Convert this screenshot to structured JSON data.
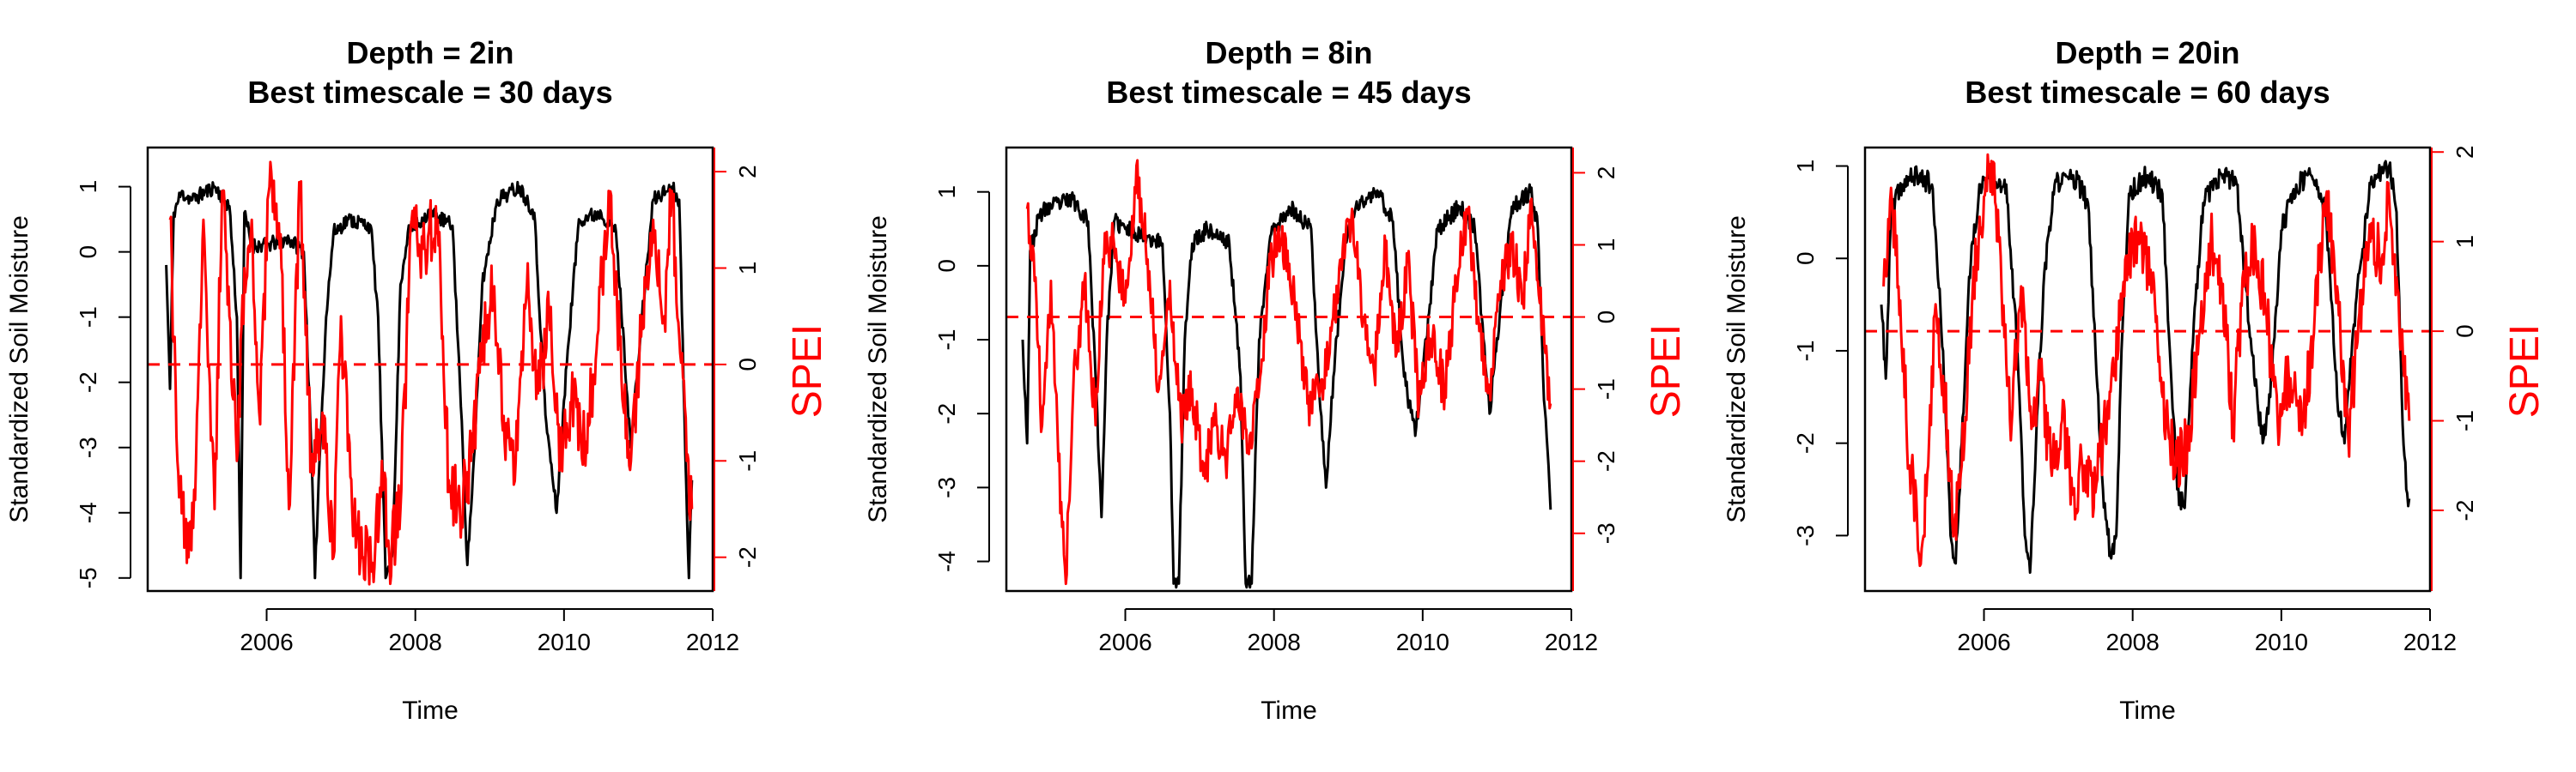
{
  "figure": {
    "background": "#ffffff",
    "colors": {
      "moisture": "#000000",
      "spei": "#ff0000",
      "zero_line": "#ff0000"
    }
  },
  "chart_data": [
    {
      "type": "line",
      "title_line1": "Depth = 2in",
      "title_line2": "Best timescale = 30 days",
      "xlabel": "Time",
      "ylabel": "Standardized Soil Moisture",
      "ylabel_right": "SPEI",
      "xlim": [
        2004.4,
        2012.0
      ],
      "xticks": [
        2006,
        2008,
        2010,
        2012
      ],
      "ylim_left": [
        -5.2,
        1.6
      ],
      "yticks_left": [
        1,
        0,
        -1,
        -2,
        -3,
        -4,
        -5
      ],
      "ylim_right": [
        -2.35,
        2.25
      ],
      "yticks_right": [
        2,
        1,
        0,
        -1,
        -2
      ],
      "zero_line_spei": 0,
      "seed": 11,
      "moisture_anchors": [
        [
          2004.65,
          -0.2
        ],
        [
          2004.7,
          -2.1
        ],
        [
          2004.75,
          0.6
        ],
        [
          2004.85,
          0.9
        ],
        [
          2005.0,
          0.8
        ],
        [
          2005.3,
          1.0
        ],
        [
          2005.5,
          0.7
        ],
        [
          2005.6,
          -1.0
        ],
        [
          2005.65,
          -5.0
        ],
        [
          2005.7,
          0.6
        ],
        [
          2005.8,
          0.1
        ],
        [
          2006.0,
          0.1
        ],
        [
          2006.3,
          0.2
        ],
        [
          2006.5,
          0.0
        ],
        [
          2006.6,
          -3.0
        ],
        [
          2006.65,
          -5.0
        ],
        [
          2006.7,
          -3.5
        ],
        [
          2006.8,
          -1.0
        ],
        [
          2006.9,
          0.3
        ],
        [
          2007.1,
          0.5
        ],
        [
          2007.4,
          0.4
        ],
        [
          2007.5,
          -1.0
        ],
        [
          2007.6,
          -5.0
        ],
        [
          2007.7,
          -4.5
        ],
        [
          2007.8,
          -0.5
        ],
        [
          2007.9,
          0.3
        ],
        [
          2008.2,
          0.6
        ],
        [
          2008.5,
          0.4
        ],
        [
          2008.6,
          -2.0
        ],
        [
          2008.7,
          -4.8
        ],
        [
          2008.8,
          -3.0
        ],
        [
          2008.9,
          -0.5
        ],
        [
          2009.1,
          0.8
        ],
        [
          2009.4,
          1.0
        ],
        [
          2009.6,
          0.6
        ],
        [
          2009.75,
          -2.5
        ],
        [
          2009.9,
          -4.0
        ],
        [
          2010.05,
          -1.5
        ],
        [
          2010.2,
          0.5
        ],
        [
          2010.5,
          0.6
        ],
        [
          2010.7,
          0.3
        ],
        [
          2010.9,
          -3.0
        ],
        [
          2011.05,
          -1.0
        ],
        [
          2011.2,
          0.8
        ],
        [
          2011.45,
          1.0
        ],
        [
          2011.55,
          0.8
        ],
        [
          2011.62,
          -2.5
        ],
        [
          2011.68,
          -5.0
        ],
        [
          2011.72,
          -3.5
        ]
      ],
      "spei_anchors": [
        [
          2004.7,
          1.5
        ],
        [
          2004.8,
          -1.0
        ],
        [
          2004.95,
          -2.0
        ],
        [
          2005.05,
          -1.0
        ],
        [
          2005.15,
          1.5
        ],
        [
          2005.3,
          -1.5
        ],
        [
          2005.4,
          1.8
        ],
        [
          2005.5,
          0.5
        ],
        [
          2005.6,
          -1.0
        ],
        [
          2005.7,
          1.0
        ],
        [
          2005.8,
          1.5
        ],
        [
          2005.9,
          -0.5
        ],
        [
          2006.05,
          2.1
        ],
        [
          2006.2,
          1.0
        ],
        [
          2006.3,
          -1.5
        ],
        [
          2006.45,
          1.8
        ],
        [
          2006.6,
          -1.0
        ],
        [
          2006.75,
          -0.5
        ],
        [
          2006.9,
          -2.0
        ],
        [
          2007.0,
          0.5
        ],
        [
          2007.15,
          -1.5
        ],
        [
          2007.3,
          -2.0
        ],
        [
          2007.45,
          -2.1
        ],
        [
          2007.55,
          -1.0
        ],
        [
          2007.65,
          -2.0
        ],
        [
          2007.8,
          -1.5
        ],
        [
          2007.95,
          1.5
        ],
        [
          2008.1,
          1.2
        ],
        [
          2008.3,
          1.5
        ],
        [
          2008.45,
          -1.2
        ],
        [
          2008.6,
          -1.5
        ],
        [
          2008.75,
          -1.0
        ],
        [
          2008.9,
          0.2
        ],
        [
          2009.05,
          0.8
        ],
        [
          2009.2,
          -0.8
        ],
        [
          2009.35,
          -1.0
        ],
        [
          2009.5,
          0.8
        ],
        [
          2009.65,
          -0.3
        ],
        [
          2009.8,
          0.5
        ],
        [
          2009.95,
          -1.0
        ],
        [
          2010.1,
          -0.4
        ],
        [
          2010.3,
          -0.8
        ],
        [
          2010.45,
          0.3
        ],
        [
          2010.6,
          1.8
        ],
        [
          2010.75,
          0.2
        ],
        [
          2010.9,
          -1.0
        ],
        [
          2011.05,
          0.5
        ],
        [
          2011.2,
          1.5
        ],
        [
          2011.35,
          0.5
        ],
        [
          2011.45,
          1.8
        ],
        [
          2011.55,
          0.3
        ],
        [
          2011.65,
          -1.0
        ],
        [
          2011.72,
          -1.5
        ]
      ]
    },
    {
      "type": "line",
      "title_line1": "Depth = 8in",
      "title_line2": "Best timescale = 45 days",
      "xlabel": "Time",
      "ylabel": "Standardized Soil Moisture",
      "ylabel_right": "SPEI",
      "xlim": [
        2004.4,
        2012.0
      ],
      "xticks": [
        2006,
        2008,
        2010,
        2012
      ],
      "ylim_left": [
        -4.4,
        1.6
      ],
      "yticks_left": [
        1,
        0,
        -1,
        -2,
        -3,
        -4
      ],
      "ylim_right": [
        -3.8,
        2.35
      ],
      "yticks_right": [
        2,
        1,
        0,
        -1,
        -2,
        -3
      ],
      "zero_line_spei": 0,
      "seed": 23,
      "moisture_anchors": [
        [
          2004.62,
          -1.0
        ],
        [
          2004.68,
          -2.4
        ],
        [
          2004.72,
          0.2
        ],
        [
          2004.85,
          0.7
        ],
        [
          2005.0,
          0.8
        ],
        [
          2005.3,
          0.9
        ],
        [
          2005.5,
          0.6
        ],
        [
          2005.6,
          -1.5
        ],
        [
          2005.68,
          -3.4
        ],
        [
          2005.75,
          -1.0
        ],
        [
          2005.85,
          0.6
        ],
        [
          2006.0,
          0.5
        ],
        [
          2006.3,
          0.4
        ],
        [
          2006.5,
          0.3
        ],
        [
          2006.6,
          -2.0
        ],
        [
          2006.65,
          -4.3
        ],
        [
          2006.72,
          -4.3
        ],
        [
          2006.8,
          -1.0
        ],
        [
          2006.9,
          0.3
        ],
        [
          2007.1,
          0.5
        ],
        [
          2007.4,
          0.3
        ],
        [
          2007.55,
          -1.5
        ],
        [
          2007.62,
          -4.3
        ],
        [
          2007.7,
          -4.3
        ],
        [
          2007.8,
          -1.0
        ],
        [
          2007.95,
          0.4
        ],
        [
          2008.2,
          0.8
        ],
        [
          2008.5,
          0.5
        ],
        [
          2008.6,
          -1.5
        ],
        [
          2008.7,
          -3.0
        ],
        [
          2008.8,
          -1.5
        ],
        [
          2008.95,
          0.2
        ],
        [
          2009.1,
          0.8
        ],
        [
          2009.4,
          1.0
        ],
        [
          2009.6,
          0.6
        ],
        [
          2009.75,
          -1.5
        ],
        [
          2009.9,
          -2.3
        ],
        [
          2010.05,
          -1.0
        ],
        [
          2010.2,
          0.5
        ],
        [
          2010.5,
          0.8
        ],
        [
          2010.7,
          0.5
        ],
        [
          2010.9,
          -2.0
        ],
        [
          2011.05,
          -0.5
        ],
        [
          2011.2,
          0.8
        ],
        [
          2011.45,
          1.0
        ],
        [
          2011.55,
          0.5
        ],
        [
          2011.62,
          -1.5
        ],
        [
          2011.68,
          -2.5
        ],
        [
          2011.72,
          -3.3
        ]
      ],
      "spei_anchors": [
        [
          2004.68,
          1.5
        ],
        [
          2004.78,
          0.5
        ],
        [
          2004.88,
          -1.5
        ],
        [
          2005.0,
          0.5
        ],
        [
          2005.1,
          -2.0
        ],
        [
          2005.2,
          -3.7
        ],
        [
          2005.3,
          -1.0
        ],
        [
          2005.45,
          0.5
        ],
        [
          2005.6,
          -1.5
        ],
        [
          2005.7,
          0.8
        ],
        [
          2005.85,
          1.0
        ],
        [
          2006.0,
          0.2
        ],
        [
          2006.15,
          2.1
        ],
        [
          2006.3,
          0.8
        ],
        [
          2006.45,
          -1.0
        ],
        [
          2006.6,
          0.5
        ],
        [
          2006.75,
          -1.5
        ],
        [
          2006.9,
          -1.0
        ],
        [
          2007.05,
          -2.2
        ],
        [
          2007.2,
          -1.5
        ],
        [
          2007.35,
          -2.0
        ],
        [
          2007.5,
          -1.0
        ],
        [
          2007.65,
          -1.8
        ],
        [
          2007.8,
          -1.0
        ],
        [
          2007.95,
          0.8
        ],
        [
          2008.1,
          1.0
        ],
        [
          2008.3,
          0.2
        ],
        [
          2008.45,
          -1.2
        ],
        [
          2008.6,
          -1.0
        ],
        [
          2008.75,
          -0.5
        ],
        [
          2008.9,
          0.8
        ],
        [
          2009.05,
          1.5
        ],
        [
          2009.2,
          0.0
        ],
        [
          2009.35,
          -0.8
        ],
        [
          2009.5,
          1.0
        ],
        [
          2009.65,
          -0.5
        ],
        [
          2009.8,
          0.8
        ],
        [
          2009.95,
          -1.2
        ],
        [
          2010.1,
          -0.3
        ],
        [
          2010.3,
          -1.0
        ],
        [
          2010.45,
          0.5
        ],
        [
          2010.6,
          1.5
        ],
        [
          2010.75,
          0.0
        ],
        [
          2010.9,
          -1.0
        ],
        [
          2011.05,
          0.5
        ],
        [
          2011.2,
          1.0
        ],
        [
          2011.35,
          0.2
        ],
        [
          2011.45,
          1.6
        ],
        [
          2011.55,
          0.5
        ],
        [
          2011.65,
          -0.5
        ],
        [
          2011.72,
          -1.2
        ]
      ]
    },
    {
      "type": "line",
      "title_line1": "Depth = 20in",
      "title_line2": "Best timescale = 60 days",
      "xlabel": "Time",
      "ylabel": "Standardized Soil Moisture",
      "ylabel_right": "SPEI",
      "xlim": [
        2004.4,
        2012.0
      ],
      "xticks": [
        2006,
        2008,
        2010,
        2012
      ],
      "ylim_left": [
        -3.6,
        1.2
      ],
      "yticks_left": [
        1,
        0,
        -1,
        -2,
        -3
      ],
      "ylim_right": [
        -2.9,
        2.05
      ],
      "yticks_right": [
        2,
        1,
        0,
        -1,
        -2
      ],
      "zero_line_spei": 0,
      "seed": 37,
      "moisture_anchors": [
        [
          2004.62,
          -0.5
        ],
        [
          2004.68,
          -1.3
        ],
        [
          2004.75,
          0.5
        ],
        [
          2004.9,
          0.8
        ],
        [
          2005.1,
          0.9
        ],
        [
          2005.3,
          0.8
        ],
        [
          2005.45,
          -1.0
        ],
        [
          2005.55,
          -3.0
        ],
        [
          2005.62,
          -3.3
        ],
        [
          2005.7,
          -2.0
        ],
        [
          2005.8,
          -0.2
        ],
        [
          2005.95,
          0.8
        ],
        [
          2006.1,
          0.9
        ],
        [
          2006.3,
          0.8
        ],
        [
          2006.45,
          -1.0
        ],
        [
          2006.55,
          -3.0
        ],
        [
          2006.62,
          -3.4
        ],
        [
          2006.7,
          -2.0
        ],
        [
          2006.8,
          -0.3
        ],
        [
          2006.95,
          0.8
        ],
        [
          2007.2,
          0.9
        ],
        [
          2007.4,
          0.6
        ],
        [
          2007.5,
          -1.0
        ],
        [
          2007.6,
          -2.5
        ],
        [
          2007.7,
          -3.2
        ],
        [
          2007.78,
          -3.0
        ],
        [
          2007.85,
          -1.0
        ],
        [
          2007.95,
          0.7
        ],
        [
          2008.2,
          0.9
        ],
        [
          2008.4,
          0.7
        ],
        [
          2008.5,
          -1.0
        ],
        [
          2008.6,
          -2.5
        ],
        [
          2008.7,
          -2.7
        ],
        [
          2008.8,
          -1.0
        ],
        [
          2008.95,
          0.6
        ],
        [
          2009.2,
          0.9
        ],
        [
          2009.4,
          0.8
        ],
        [
          2009.6,
          -1.0
        ],
        [
          2009.75,
          -2.0
        ],
        [
          2009.85,
          -1.5
        ],
        [
          2010.0,
          0.3
        ],
        [
          2010.2,
          0.8
        ],
        [
          2010.4,
          0.9
        ],
        [
          2010.6,
          0.5
        ],
        [
          2010.75,
          -1.5
        ],
        [
          2010.85,
          -2.0
        ],
        [
          2011.0,
          -0.5
        ],
        [
          2011.2,
          0.8
        ],
        [
          2011.45,
          1.0
        ],
        [
          2011.55,
          0.5
        ],
        [
          2011.62,
          -1.5
        ],
        [
          2011.68,
          -2.5
        ],
        [
          2011.72,
          -2.6
        ]
      ],
      "spei_anchors": [
        [
          2004.65,
          0.5
        ],
        [
          2004.75,
          1.6
        ],
        [
          2004.85,
          0.5
        ],
        [
          2005.0,
          -1.5
        ],
        [
          2005.1,
          -2.1
        ],
        [
          2005.15,
          -2.6
        ],
        [
          2005.25,
          -1.5
        ],
        [
          2005.35,
          0.3
        ],
        [
          2005.45,
          -0.5
        ],
        [
          2005.6,
          -2.2
        ],
        [
          2005.7,
          -1.5
        ],
        [
          2005.85,
          0.5
        ],
        [
          2006.0,
          1.5
        ],
        [
          2006.1,
          1.9
        ],
        [
          2006.2,
          1.0
        ],
        [
          2006.35,
          -1.0
        ],
        [
          2006.5,
          0.5
        ],
        [
          2006.65,
          -1.0
        ],
        [
          2006.75,
          -0.5
        ],
        [
          2006.9,
          -1.5
        ],
        [
          2007.05,
          -1.0
        ],
        [
          2007.2,
          -1.8
        ],
        [
          2007.35,
          -1.5
        ],
        [
          2007.5,
          -1.8
        ],
        [
          2007.6,
          -1.2
        ],
        [
          2007.75,
          -0.5
        ],
        [
          2007.9,
          0.8
        ],
        [
          2008.1,
          1.0
        ],
        [
          2008.3,
          0.3
        ],
        [
          2008.45,
          -1.0
        ],
        [
          2008.6,
          -1.5
        ],
        [
          2008.75,
          -1.2
        ],
        [
          2008.9,
          0.0
        ],
        [
          2009.05,
          1.0
        ],
        [
          2009.2,
          0.5
        ],
        [
          2009.35,
          -1.0
        ],
        [
          2009.5,
          0.5
        ],
        [
          2009.65,
          1.0
        ],
        [
          2009.8,
          0.2
        ],
        [
          2009.95,
          -1.0
        ],
        [
          2010.1,
          -0.5
        ],
        [
          2010.3,
          -1.0
        ],
        [
          2010.45,
          0.2
        ],
        [
          2010.6,
          1.5
        ],
        [
          2010.75,
          0.5
        ],
        [
          2010.9,
          -1.2
        ],
        [
          2011.05,
          0.2
        ],
        [
          2011.2,
          1.0
        ],
        [
          2011.35,
          0.8
        ],
        [
          2011.45,
          1.5
        ],
        [
          2011.55,
          0.6
        ],
        [
          2011.65,
          -0.5
        ],
        [
          2011.72,
          -1.0
        ]
      ]
    }
  ]
}
